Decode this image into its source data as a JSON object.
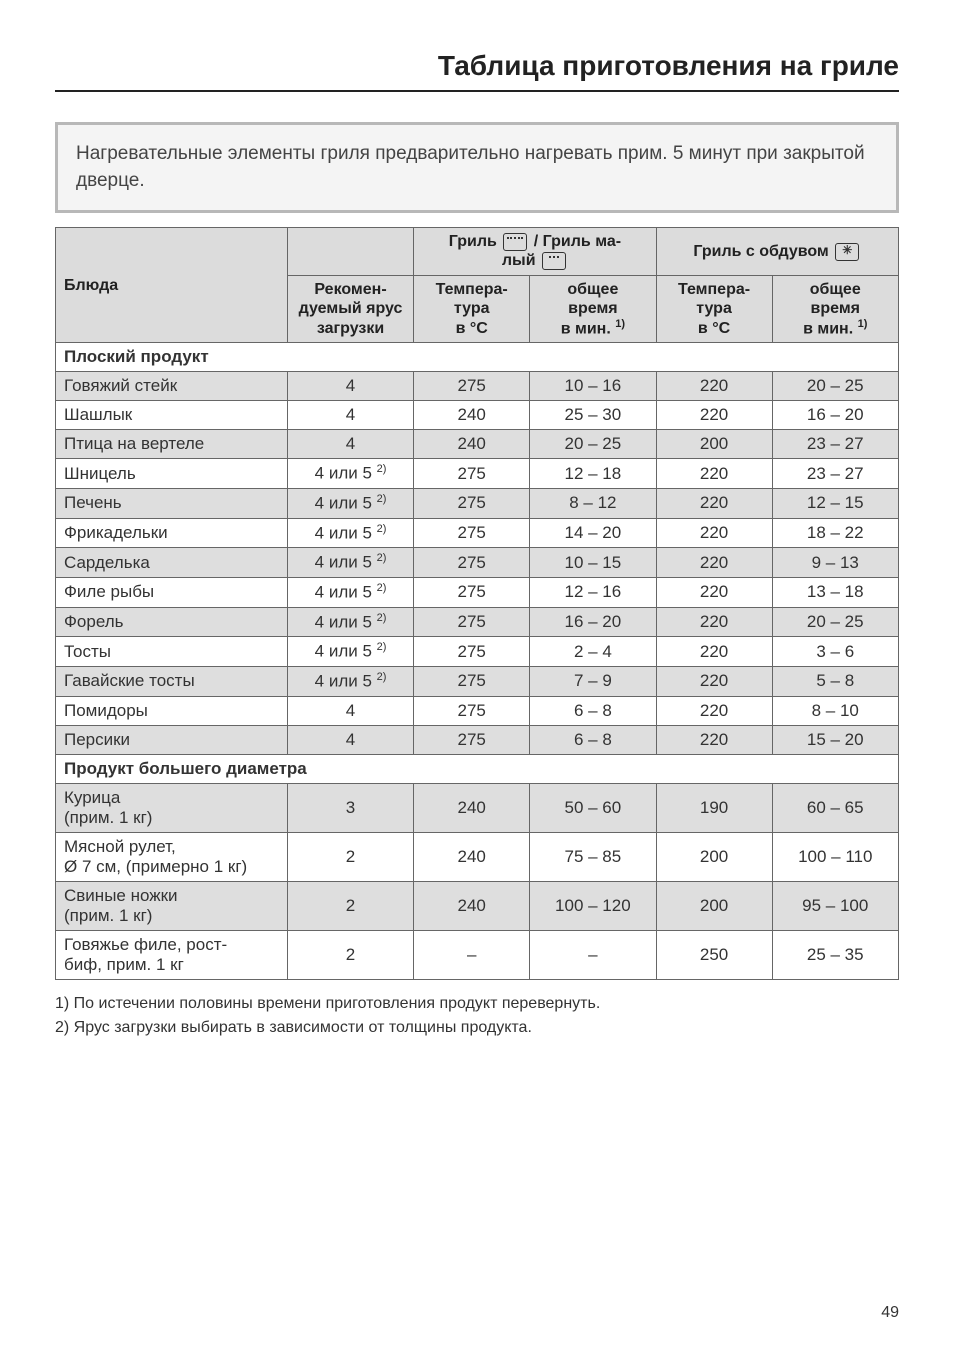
{
  "page": {
    "title": "Таблица приготовления на гриле",
    "note": "Нагревательные элементы гриля предварительно нагревать прим. 5 минут при закрытой дверце.",
    "page_number": "49",
    "footnotes": [
      "1) По истечении половины времени приготовления продукт перевернуть.",
      "2) Ярус загрузки выбирать в зависимости от толщины продукта."
    ]
  },
  "headers": {
    "dish": "Блюда",
    "level": "Рекомен-\nдуемый ярус\nзагрузки",
    "grill_group": "Гриль     / Гриль ма-\nлый",
    "fan_group": "Гриль с обдувом",
    "temp": "Темпера-\nтура\nв °C",
    "time": "общее\nвремя\nв мин.",
    "time_sup": "1)"
  },
  "sections": [
    {
      "title": "Плоский продукт",
      "rows": [
        {
          "dish": "Говяжий стейк",
          "level": "4",
          "level_sup": "",
          "t1": "275",
          "m1": "10 – 16",
          "t2": "220",
          "m2": "20 – 25",
          "shade": true
        },
        {
          "dish": "Шашлык",
          "level": "4",
          "level_sup": "",
          "t1": "240",
          "m1": "25 – 30",
          "t2": "220",
          "m2": "16 – 20",
          "shade": false
        },
        {
          "dish": "Птица на вертеле",
          "level": "4",
          "level_sup": "",
          "t1": "240",
          "m1": "20 – 25",
          "t2": "200",
          "m2": "23 – 27",
          "shade": true
        },
        {
          "dish": "Шницель",
          "level": "4 или 5",
          "level_sup": "2)",
          "t1": "275",
          "m1": "12 – 18",
          "t2": "220",
          "m2": "23 – 27",
          "shade": false
        },
        {
          "dish": "Печень",
          "level": "4 или 5",
          "level_sup": "2)",
          "t1": "275",
          "m1": "8 – 12",
          "t2": "220",
          "m2": "12 – 15",
          "shade": true
        },
        {
          "dish": "Фрикадельки",
          "level": "4 или 5",
          "level_sup": "2)",
          "t1": "275",
          "m1": "14 – 20",
          "t2": "220",
          "m2": "18 – 22",
          "shade": false
        },
        {
          "dish": "Сарделька",
          "level": "4 или 5",
          "level_sup": "2)",
          "t1": "275",
          "m1": "10 – 15",
          "t2": "220",
          "m2": "9 – 13",
          "shade": true
        },
        {
          "dish": "Филе рыбы",
          "level": "4 или 5",
          "level_sup": "2)",
          "t1": "275",
          "m1": "12 – 16",
          "t2": "220",
          "m2": "13 – 18",
          "shade": false
        },
        {
          "dish": "Форель",
          "level": "4 или 5",
          "level_sup": "2)",
          "t1": "275",
          "m1": "16 – 20",
          "t2": "220",
          "m2": "20 – 25",
          "shade": true
        },
        {
          "dish": "Тосты",
          "level": "4 или 5",
          "level_sup": "2)",
          "t1": "275",
          "m1": "2 – 4",
          "t2": "220",
          "m2": "3 – 6",
          "shade": false
        },
        {
          "dish": "Гавайские тосты",
          "level": "4 или 5",
          "level_sup": "2)",
          "t1": "275",
          "m1": "7 – 9",
          "t2": "220",
          "m2": "5 – 8",
          "shade": true
        },
        {
          "dish": "Помидоры",
          "level": "4",
          "level_sup": "",
          "t1": "275",
          "m1": "6 – 8",
          "t2": "220",
          "m2": "8 – 10",
          "shade": false
        },
        {
          "dish": "Персики",
          "level": "4",
          "level_sup": "",
          "t1": "275",
          "m1": "6 – 8",
          "t2": "220",
          "m2": "15 – 20",
          "shade": true
        }
      ]
    },
    {
      "title": "Продукт большего диаметра",
      "rows": [
        {
          "dish": "Курица\n(прим. 1 кг)",
          "level": "3",
          "level_sup": "",
          "t1": "240",
          "m1": "50 – 60",
          "t2": "190",
          "m2": "60 – 65",
          "shade": true
        },
        {
          "dish": "Мясной рулет,\nØ 7 см, (примерно 1 кг)",
          "level": "2",
          "level_sup": "",
          "t1": "240",
          "m1": "75 – 85",
          "t2": "200",
          "m2": "100 – 110",
          "shade": false
        },
        {
          "dish": "Свиные ножки\n(прим. 1 кг)",
          "level": "2",
          "level_sup": "",
          "t1": "240",
          "m1": "100 – 120",
          "t2": "200",
          "m2": "95 – 100",
          "shade": true
        },
        {
          "dish": "Говяжье филе, рост-\nбиф, прим. 1 кг",
          "level": "2",
          "level_sup": "",
          "t1": "–",
          "m1": "–",
          "t2": "250",
          "m2": "25 – 35",
          "shade": false
        }
      ]
    }
  ],
  "colors": {
    "header_bg": "#dcdcdc",
    "row_shade": "#dedede",
    "note_bg": "#f4f4f4",
    "note_border": "#b8b8b8",
    "text": "#333333"
  }
}
